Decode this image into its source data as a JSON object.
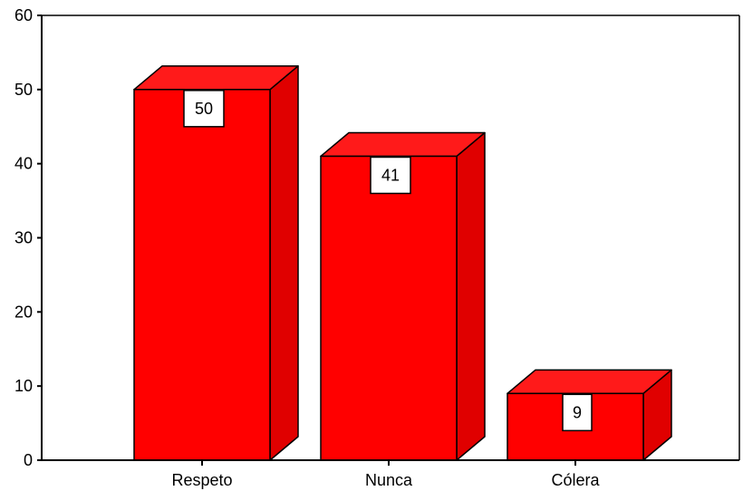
{
  "chart_data": {
    "type": "bar",
    "categories": [
      "Respeto",
      "Nunca",
      "Cólera"
    ],
    "values": [
      50,
      41,
      9
    ],
    "data_labels": [
      "50",
      "41",
      "9"
    ],
    "yticks": [
      0,
      10,
      20,
      30,
      40,
      50,
      60
    ],
    "ytick_labels": [
      "0",
      "10",
      "20",
      "30",
      "40",
      "50",
      "60"
    ],
    "ylim": [
      0,
      60
    ],
    "grid": false,
    "legend": "none",
    "style": "3d",
    "bar_color": "#ff0000",
    "bar_side_color": "#e00000",
    "bar_top_color": "#ff1a1a",
    "edge_color": "#000000"
  }
}
